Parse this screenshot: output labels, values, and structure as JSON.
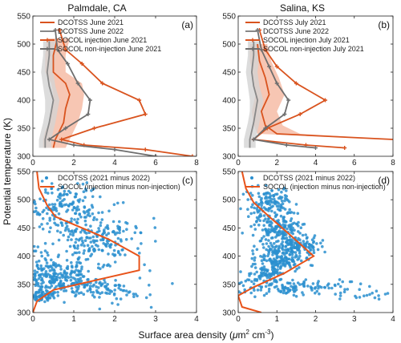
{
  "figure": {
    "ylabel": "Potential temperature (K)",
    "xlabel_prefix": "Surface area density (",
    "xlabel_mu": "μ",
    "xlabel_mid": "m",
    "xlabel_sup1": "2",
    "xlabel_cm": " cm",
    "xlabel_sup2": "-3",
    "xlabel_suffix": ")",
    "col_titles": [
      "Palmdale, CA",
      "Salina, KS"
    ]
  },
  "colors": {
    "dcotss_inj": "#d9531e",
    "dcotss_inj_band": "#f5b8a0",
    "dcotss_non": "#888888",
    "dcotss_non_band": "#d3d3d3",
    "socol_inj": "#d9531e",
    "socol_non": "#6e6e6e",
    "scatter": "#2a8fcf",
    "socol_diff": "#e8531a"
  },
  "chart_data": [
    {
      "panel": "a",
      "label": "(a)",
      "type": "line",
      "xlim": [
        0,
        8
      ],
      "ylim": [
        300,
        550
      ],
      "xticks": [
        0,
        2,
        4,
        6,
        8
      ],
      "yticks": [
        300,
        350,
        400,
        450,
        500,
        550
      ],
      "legend": [
        "DCOTSS June 2021",
        "DCOTSS June 2022",
        "SOCOL injection June 2021",
        "SOCOL non-injection June 2021"
      ],
      "series": [
        {
          "name": "DCOTSS June 2021",
          "style": "dcotss_inj",
          "x": [
            1.2,
            1.0,
            1.0,
            1.6,
            1.8,
            1.6,
            1.5,
            1.3,
            1.1,
            1.0
          ],
          "y": [
            510,
            480,
            450,
            430,
            410,
            385,
            360,
            345,
            330,
            315
          ],
          "band_lo": [
            0.7,
            0.6,
            0.6,
            0.9,
            1.0,
            0.9,
            0.8,
            0.6,
            0.5,
            0.5
          ],
          "band_hi": [
            1.8,
            1.6,
            1.6,
            2.4,
            2.5,
            2.4,
            2.2,
            2.0,
            1.8,
            1.6
          ]
        },
        {
          "name": "DCOTSS June 2022",
          "style": "dcotss_non",
          "x": [
            0.8,
            0.8,
            0.7,
            0.8,
            1.0,
            0.9,
            0.8,
            0.7,
            0.6,
            0.6
          ],
          "y": [
            505,
            480,
            450,
            425,
            400,
            380,
            360,
            345,
            330,
            315
          ],
          "band_lo": [
            0.5,
            0.5,
            0.4,
            0.5,
            0.6,
            0.6,
            0.5,
            0.4,
            0.3,
            0.3
          ],
          "band_hi": [
            1.1,
            1.1,
            1.0,
            1.1,
            1.3,
            1.2,
            1.1,
            1.0,
            0.9,
            0.9
          ]
        },
        {
          "name": "SOCOL injection June 2021",
          "style": "socol_inj",
          "x": [
            1.3,
            1.6,
            2.4,
            3.4,
            5.2,
            5.5,
            3.0,
            1.4,
            2.5,
            5.5,
            7.8
          ],
          "y": [
            525,
            490,
            465,
            430,
            400,
            375,
            350,
            330,
            320,
            312,
            300
          ],
          "markers": true
        },
        {
          "name": "SOCOL non-injection June 2021",
          "style": "socol_non",
          "x": [
            1.1,
            1.2,
            1.7,
            2.2,
            2.8,
            2.7,
            1.6,
            0.8,
            2.0,
            4.0,
            6.0
          ],
          "y": [
            525,
            490,
            465,
            430,
            400,
            375,
            350,
            330,
            320,
            312,
            300
          ],
          "markers": true
        }
      ]
    },
    {
      "panel": "b",
      "label": "(b)",
      "type": "line",
      "xlim": [
        0,
        8
      ],
      "ylim": [
        300,
        550
      ],
      "xticks": [
        0,
        2,
        4,
        6,
        8
      ],
      "yticks": [
        300,
        350,
        400,
        450,
        500,
        550
      ],
      "legend": [
        "DCOTSS July 2021",
        "DCOTSS June 2022",
        "SOCOL injection July 2021",
        "SOCOL non-injection July 2021"
      ],
      "series": [
        {
          "name": "DCOTSS July 2021",
          "style": "dcotss_inj",
          "x": [
            1.0,
            1.1,
            1.4,
            1.6,
            1.2,
            1.4,
            2.0,
            8.0
          ],
          "y": [
            500,
            470,
            440,
            410,
            380,
            355,
            340,
            330
          ],
          "band_lo": [
            0.6,
            0.6,
            0.8,
            0.9,
            0.7,
            0.8,
            1.0,
            8.0
          ],
          "band_hi": [
            1.5,
            1.7,
            2.1,
            2.4,
            2.0,
            2.3,
            3.2,
            8.0
          ]
        },
        {
          "name": "DCOTSS June 2022",
          "style": "dcotss_non",
          "x": [
            0.8,
            0.8,
            0.7,
            0.8,
            1.0,
            0.9,
            0.8,
            0.7,
            0.6,
            0.6
          ],
          "y": [
            505,
            480,
            450,
            425,
            400,
            380,
            360,
            345,
            330,
            315
          ],
          "band_lo": [
            0.5,
            0.5,
            0.4,
            0.5,
            0.6,
            0.6,
            0.5,
            0.4,
            0.3,
            0.3
          ],
          "band_hi": [
            1.1,
            1.1,
            1.0,
            1.1,
            1.3,
            1.2,
            1.1,
            1.0,
            0.9,
            0.9
          ]
        },
        {
          "name": "SOCOL injection July 2021",
          "style": "socol_inj",
          "x": [
            1.1,
            1.4,
            2.0,
            3.0,
            4.5,
            3.2,
            1.5,
            0.8,
            3.5,
            5.5
          ],
          "y": [
            525,
            490,
            460,
            430,
            400,
            375,
            350,
            330,
            320,
            315
          ],
          "markers": true
        },
        {
          "name": "SOCOL non-injection July 2021",
          "style": "socol_non",
          "x": [
            1.0,
            1.2,
            1.6,
            2.0,
            2.6,
            2.4,
            1.4,
            0.8,
            2.5,
            4.0
          ],
          "y": [
            525,
            490,
            460,
            430,
            400,
            375,
            350,
            330,
            320,
            315
          ],
          "markers": true
        }
      ]
    },
    {
      "panel": "c",
      "label": "(c)",
      "type": "scatter",
      "xlim": [
        0,
        4
      ],
      "ylim": [
        300,
        550
      ],
      "xticks": [
        0,
        1,
        2,
        3,
        4
      ],
      "yticks": [
        300,
        350,
        400,
        450,
        500,
        550
      ],
      "legend": [
        "DCOTSS (2021 minus 2022)",
        "SOCOL (injection minus non-injection)"
      ],
      "clusters": [
        {
          "xc": 0.8,
          "yc": 490,
          "sx": 0.45,
          "sy": 20,
          "n": 140
        },
        {
          "xc": 1.6,
          "yc": 445,
          "sx": 0.6,
          "sy": 18,
          "n": 130
        },
        {
          "xc": 1.4,
          "yc": 410,
          "sx": 0.65,
          "sy": 14,
          "n": 90
        },
        {
          "xc": 0.5,
          "yc": 370,
          "sx": 0.45,
          "sy": 12,
          "n": 150
        },
        {
          "xc": 1.2,
          "yc": 345,
          "sx": 0.7,
          "sy": 8,
          "n": 130
        },
        {
          "xc": 0.3,
          "yc": 330,
          "sx": 0.25,
          "sy": 6,
          "n": 60
        },
        {
          "xc": 2.2,
          "yc": 330,
          "sx": 0.5,
          "sy": 7,
          "n": 25
        }
      ],
      "socol": {
        "x": [
          0.1,
          0.15,
          0.35,
          0.55,
          1.2,
          1.85,
          2.6,
          2.6,
          0.5,
          0.1,
          0.0
        ],
        "y": [
          550,
          520,
          490,
          470,
          450,
          430,
          400,
          375,
          340,
          320,
          300
        ]
      }
    },
    {
      "panel": "d",
      "label": "(d)",
      "type": "scatter",
      "xlim": [
        0,
        4
      ],
      "ylim": [
        300,
        550
      ],
      "xticks": [
        0,
        1,
        2,
        3,
        4
      ],
      "yticks": [
        300,
        350,
        400,
        450,
        500,
        550
      ],
      "legend": [
        "DCOTSS (2021 minus 2022)",
        "SOCOL (injection minus non-injection)"
      ],
      "clusters": [
        {
          "xc": 0.8,
          "yc": 490,
          "sx": 0.3,
          "sy": 15,
          "n": 140
        },
        {
          "xc": 1.05,
          "yc": 450,
          "sx": 0.3,
          "sy": 12,
          "n": 130
        },
        {
          "xc": 1.4,
          "yc": 420,
          "sx": 0.35,
          "sy": 10,
          "n": 150
        },
        {
          "xc": 1.1,
          "yc": 395,
          "sx": 0.3,
          "sy": 10,
          "n": 130
        },
        {
          "xc": 0.7,
          "yc": 370,
          "sx": 0.3,
          "sy": 10,
          "n": 80
        },
        {
          "xc": 1.4,
          "yc": 345,
          "sx": 0.8,
          "sy": 7,
          "n": 130
        },
        {
          "xc": 3.2,
          "yc": 328,
          "sx": 0.4,
          "sy": 4,
          "n": 15
        }
      ],
      "socol": {
        "x": [
          0.1,
          0.2,
          0.4,
          0.8,
          1.3,
          1.95,
          1.2,
          0.4,
          0.0,
          0.1,
          0.6
        ],
        "y": [
          550,
          520,
          495,
          470,
          440,
          400,
          370,
          345,
          330,
          310,
          300
        ]
      }
    }
  ]
}
